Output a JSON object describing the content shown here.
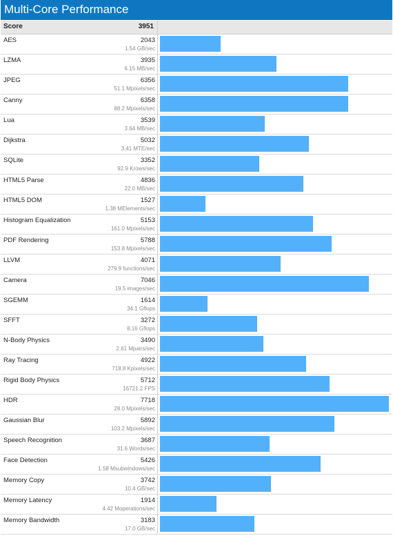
{
  "title": "Multi-Core Performance",
  "colors": {
    "header_bg": "#0f77c2",
    "bar": "#52b1fa",
    "score_row_bg": "#e7e7e7"
  },
  "chart_data": {
    "type": "bar",
    "orientation": "horizontal",
    "title": "Multi-Core Performance",
    "score_label": "Score",
    "score_value": "3951",
    "xlim": [
      0,
      7718
    ],
    "rows": [
      {
        "name": "AES",
        "score": 2043,
        "rate": "1.54 GB/sec"
      },
      {
        "name": "LZMA",
        "score": 3935,
        "rate": "6.15 MB/sec"
      },
      {
        "name": "JPEG",
        "score": 6356,
        "rate": "51.1 Mpixels/sec"
      },
      {
        "name": "Canny",
        "score": 6358,
        "rate": "88.2 Mpixels/sec"
      },
      {
        "name": "Lua",
        "score": 3539,
        "rate": "3.64 MB/sec"
      },
      {
        "name": "Dijkstra",
        "score": 5032,
        "rate": "3.41 MTE/sec"
      },
      {
        "name": "SQLite",
        "score": 3352,
        "rate": "92.9 Krows/sec"
      },
      {
        "name": "HTML5 Parse",
        "score": 4836,
        "rate": "22.0 MB/sec"
      },
      {
        "name": "HTML5 DOM",
        "score": 1527,
        "rate": "1.38 MElements/sec"
      },
      {
        "name": "Histogram Equalization",
        "score": 5153,
        "rate": "161.0 Mpixels/sec"
      },
      {
        "name": "PDF Rendering",
        "score": 5788,
        "rate": "153.8 Mpixels/sec"
      },
      {
        "name": "LLVM",
        "score": 4071,
        "rate": "279.9 functions/sec"
      },
      {
        "name": "Camera",
        "score": 7046,
        "rate": "19.5 images/sec"
      },
      {
        "name": "SGEMM",
        "score": 1614,
        "rate": "34.1 Gflops"
      },
      {
        "name": "SFFT",
        "score": 3272,
        "rate": "8.16 Gflops"
      },
      {
        "name": "N-Body Physics",
        "score": 3490,
        "rate": "2.61 Mpairs/sec"
      },
      {
        "name": "Ray Tracing",
        "score": 4922,
        "rate": "718.8 Kpixels/sec"
      },
      {
        "name": "Rigid Body Physics",
        "score": 5712,
        "rate": "16721.2 FPS"
      },
      {
        "name": "HDR",
        "score": 7718,
        "rate": "28.0 Mpixels/sec"
      },
      {
        "name": "Gaussian Blur",
        "score": 5892,
        "rate": "103.2 Mpixels/sec"
      },
      {
        "name": "Speech Recognition",
        "score": 3687,
        "rate": "31.6 Words/sec"
      },
      {
        "name": "Face Detection",
        "score": 5426,
        "rate": "1.58 Msubwindows/sec"
      },
      {
        "name": "Memory Copy",
        "score": 3742,
        "rate": "10.4 GB/sec"
      },
      {
        "name": "Memory Latency",
        "score": 1914,
        "rate": "4.42 Moperations/sec"
      },
      {
        "name": "Memory Bandwidth",
        "score": 3183,
        "rate": "17.0 GB/sec"
      }
    ]
  }
}
